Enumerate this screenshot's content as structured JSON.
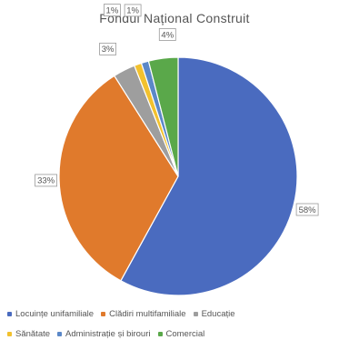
{
  "chart_data": {
    "type": "pie",
    "title": "Fondul Național Construit",
    "categories": [
      "Locuințe unifamiliale",
      "Clădiri multifamiliale",
      "Educație",
      "Sănătate",
      "Administrație și birouri",
      "Comercial"
    ],
    "values": [
      58,
      33,
      3,
      1,
      1,
      4
    ],
    "data_labels": [
      "58%",
      "33%",
      "3%",
      "1%",
      "1%",
      "4%"
    ],
    "colors": [
      "#4a6bbf",
      "#e07a2c",
      "#9e9e9e",
      "#f2c12e",
      "#5b88c8",
      "#5aa84a"
    ],
    "legend_position": "bottom",
    "start_angle_deg": 0,
    "direction": "clockwise"
  },
  "legend_rows": [
    [
      0,
      1,
      2
    ],
    [
      3,
      4,
      5
    ]
  ]
}
